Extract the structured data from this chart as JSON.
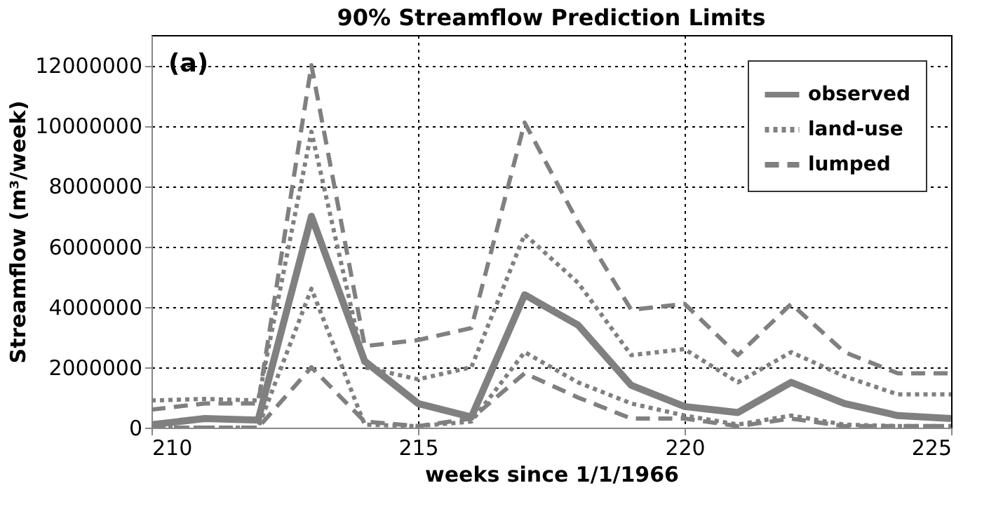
{
  "chart_data": {
    "type": "line",
    "title": "90% Streamflow Prediction Limits",
    "xlabel": "weeks since 1/1/1966",
    "ylabel": "Streamflow (m³/week)",
    "annotations": [
      "(a)"
    ],
    "x": [
      210,
      211,
      212,
      213,
      214,
      215,
      216,
      217,
      218,
      219,
      220,
      221,
      222,
      223,
      224,
      225
    ],
    "xlim": [
      210,
      225
    ],
    "xticks": [
      210,
      215,
      220,
      225
    ],
    "ylim": [
      0,
      13000000
    ],
    "yticks": [
      0,
      2000000,
      4000000,
      6000000,
      8000000,
      10000000,
      12000000
    ],
    "grid": true,
    "legend": "top right",
    "series": [
      {
        "name": "observed",
        "color": "#808080",
        "line_style": "solid",
        "values": [
          100000,
          300000,
          250000,
          7000000,
          2200000,
          800000,
          350000,
          4400000,
          3400000,
          1400000,
          700000,
          500000,
          1500000,
          800000,
          400000,
          300000
        ]
      },
      {
        "name": "land-use",
        "color": "#808080",
        "line_style": "dotted",
        "values": [
          900000,
          950000,
          900000,
          9800000,
          2000000,
          1600000,
          2000000,
          6400000,
          4800000,
          2400000,
          2600000,
          1500000,
          2500000,
          1700000,
          1100000,
          1100000
        ]
      },
      {
        "color": "#808080",
        "line_style": "dotted",
        "values": [
          0,
          0,
          0,
          4600000,
          100000,
          50000,
          200000,
          2500000,
          1500000,
          800000,
          400000,
          100000,
          400000,
          100000,
          50000,
          50000
        ]
      },
      {
        "name": "lumped",
        "color": "#808080",
        "line_style": "dashed",
        "values": [
          600000,
          800000,
          800000,
          12000000,
          2700000,
          2900000,
          3300000,
          10100000,
          6800000,
          3900000,
          4100000,
          2400000,
          4100000,
          2500000,
          1800000,
          1800000
        ]
      },
      {
        "color": "#808080",
        "line_style": "dashed",
        "values": [
          0,
          0,
          0,
          2000000,
          200000,
          50000,
          300000,
          1800000,
          1000000,
          300000,
          300000,
          50000,
          300000,
          50000,
          50000,
          50000
        ]
      }
    ]
  }
}
